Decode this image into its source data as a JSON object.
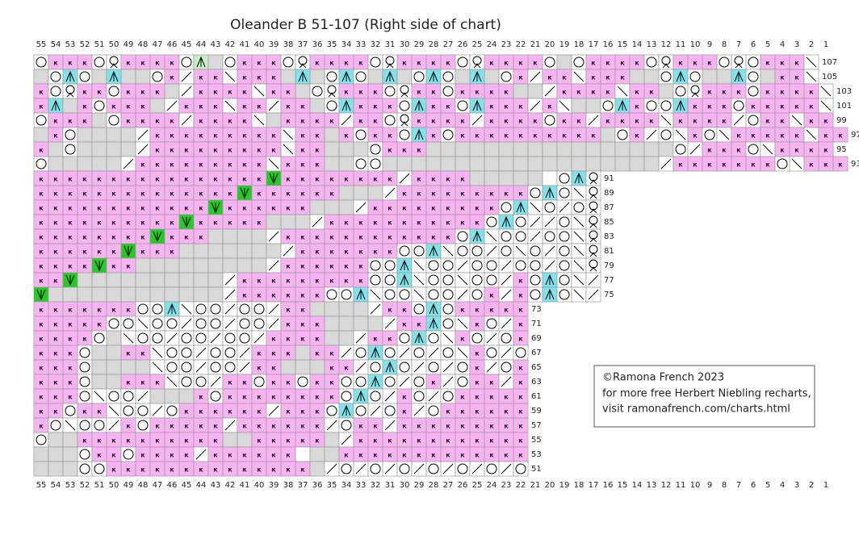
{
  "title": "Oleander B 51-107 (Right side of chart)",
  "columns": [
    55,
    54,
    53,
    52,
    51,
    50,
    49,
    48,
    47,
    46,
    45,
    44,
    43,
    42,
    41,
    40,
    39,
    38,
    37,
    36,
    35,
    34,
    33,
    32,
    31,
    30,
    29,
    28,
    27,
    26,
    25,
    24,
    23,
    22,
    21,
    20,
    19,
    18,
    17,
    16,
    15,
    14,
    13,
    12,
    11,
    10,
    9,
    8,
    7,
    6,
    5,
    4,
    3,
    2,
    1
  ],
  "rows": [
    {
      "label": 107,
      "cells": "oкккoQккккoLgoкккoQккккoQккккoQккккogoккккoQкккoQoккк\\"
    },
    {
      "label": 105,
      "cells": "goAogAggoк/кк\\кккgAgoAogAgoAogAgoк/кк\\кккggoAoggAogкк\\"
    },
    {
      "label": 103,
      "cells": "кoQккoкккg/кккк\\ккgoQкккoQккoккккgg/кккк\\ккgoQкккoкккк\\"
    },
    {
      "label": 101,
      "cells": "кAgкoкккg/ккк\\кк/ккgoAкккoAккoAккк/к\\ggoAкooAкккoккккк\\"
    },
    {
      "label": 99,
      "cells": "oкккgoкккк/кккк\\gкккк/ккoQкккк/ккккoкк/кккк\\кккк/oкк\\кк"
    },
    {
      "label": 97,
      "cells": "gкogggg/ккккккккк\\ккgкoккoAкoккккккккккgoк/o\\кo\\ккккк\\кк"
    },
    {
      "label": 95,
      "cells": "кgogggg/ккккккккк\\ккgggoкккgggggggggggggggggo/кккo\\кккк"
    },
    {
      "label": 93,
      "cells": "oggggg/ккккккккк\\кккggooggggggggggggggggggg/кккккккo\\ккк"
    },
    {
      "label": 91,
      "cells": "ккккккккккккккккVкккккккк/ккккgggggwoAQ"
    },
    {
      "label": 89,
      "cells": "ккккккккккккккVккккккggg/кккккккккoAo\\Q"
    },
    {
      "label": 87,
      "cells": "ккккккккккккVккккккggg/кккккккккoA\\o/oQ"
    },
    {
      "label": 85,
      "cells": "ккккккккккVкккккggg/кккккккккккoAo//o\\Q"
    },
    {
      "label": 83,
      "cells": "ккккккккVкккgggg/ккккккккккккoA\\oo/oo\\Q"
    },
    {
      "label": 81,
      "cells": "ккккккVкккggggggg/кккккккooA\\oo/o\\o/o\\Q"
    },
    {
      "label": 79,
      "cells": "ккккVккggggggggg/ккккккooA\\oo/oo/oo/o\\Q"
    },
    {
      "label": 77,
      "cells": "ккVgggggggggg/кккккккккooA\\oo\\oo/кoAo\\/"
    },
    {
      "label": 75,
      "cells": "Vgggggggggggg/ккккккooA\\oo\\oo/oк/кoAo\\/"
    },
    {
      "label": 73,
      "cells": "кккккккooA\\oo/oo/ккgggg/ккoAoккккк"
    },
    {
      "label": 71,
      "cells": "кккккoo\\oo/oo/oo/кккgggg/ккAo\\кo/к"
    },
    {
      "label": 69,
      "cells": "ккккog\\oo/oo/oo/ккккgg/ккoAo\\кo/oк"
    },
    {
      "label": 67,
      "cells": "кккoggкк\\oo/oo/кккgкк/oAo/o/o\\кo/o"
    },
    {
      "label": 65,
      "cells": "кккogggg\\oo/oo/ккgggкк/oAo/o/oк/oк"
    },
    {
      "label": 63,
      "cells": "кккoggккк\\oo/ккoккoккooAo/oк/oкк/к"
    },
    {
      "label": 61,
      "cells": "кккo\\oo/gggкoккккккккoAo/кo/oккккк"
    },
    {
      "label": 59,
      "cells": "ккoкк\\oo/oкккккк/кккoAo/oк/oкккккк"
    },
    {
      "label": 57,
      "cells": "кo\\oo/кoккккк/кккккк/oкк/ккккккккк"
    },
    {
      "label": 55,
      "cells": "oggккккккккккggкккккg/кккккккккккк"
    },
    {
      "label": 53,
      "cells": "gggoккoкккк/ккккккоggккккккккккккк"
    },
    {
      "label": 51,
      "cells": "gggooккккккккккккккg/o/o/o/o/o/o/o"
    }
  ],
  "note": {
    "lines": [
      "©Ramona French 2023",
      "for more free Herbert Niebling recharts,",
      "visit ramonafrench.com/charts.html"
    ]
  }
}
